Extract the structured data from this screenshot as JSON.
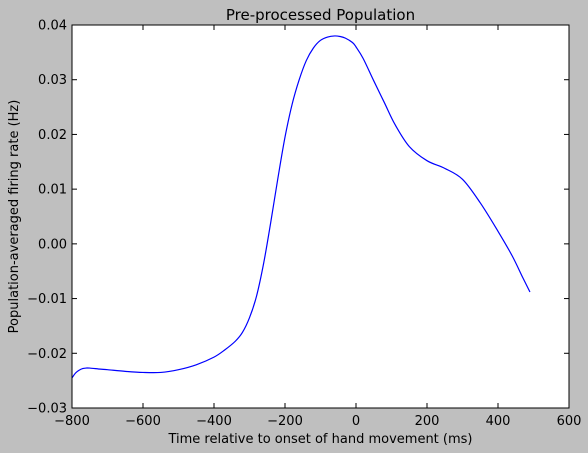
{
  "chart_data": {
    "type": "line",
    "title": "Pre-processed Population",
    "xlabel": "Time relative to onset of hand movement (ms)",
    "ylabel": "Population-averaged firing rate (Hz)",
    "xlim": [
      -800,
      600
    ],
    "ylim": [
      -0.03,
      0.04
    ],
    "xticks": [
      -800,
      -600,
      -400,
      -200,
      0,
      200,
      400,
      600
    ],
    "xtick_labels": [
      "−800",
      "−600",
      "−400",
      "−200",
      "0",
      "200",
      "400",
      "600"
    ],
    "yticks": [
      -0.03,
      -0.02,
      -0.01,
      0.0,
      0.01,
      0.02,
      0.03,
      0.04
    ],
    "ytick_labels": [
      "−0.03",
      "−0.02",
      "−0.01",
      "0.00",
      "0.01",
      "0.02",
      "0.03",
      "0.04"
    ],
    "grid": false,
    "legend": "none",
    "colors": {
      "line": "#0000ff",
      "axes_background": "#ffffff",
      "figure_background": "#bfbfbf"
    },
    "series": [
      {
        "x": [
          -800,
          -790,
          -780,
          -770,
          -760,
          -750,
          -720,
          -700,
          -650,
          -600,
          -550,
          -500,
          -450,
          -400,
          -370,
          -340,
          -320,
          -300,
          -280,
          -260,
          -240,
          -220,
          -200,
          -180,
          -160,
          -140,
          -120,
          -100,
          -80,
          -60,
          -45,
          -30,
          -10,
          0,
          20,
          50,
          80,
          110,
          150,
          200,
          250,
          300,
          350,
          400,
          440,
          470,
          490
        ],
        "y": [
          -0.0245,
          -0.0236,
          -0.0231,
          -0.0228,
          -0.0227,
          -0.0227,
          -0.0229,
          -0.023,
          -0.0233,
          -0.0235,
          -0.0235,
          -0.023,
          -0.0221,
          -0.0207,
          -0.0194,
          -0.0178,
          -0.0162,
          -0.0135,
          -0.0095,
          -0.0035,
          0.004,
          0.012,
          0.0195,
          0.0255,
          0.03,
          0.0335,
          0.0358,
          0.0372,
          0.0378,
          0.038,
          0.0379,
          0.0376,
          0.0368,
          0.036,
          0.0339,
          0.0298,
          0.0258,
          0.0218,
          0.0178,
          0.0152,
          0.0138,
          0.0118,
          0.0075,
          0.0023,
          -0.0022,
          -0.0062,
          -0.0088
        ]
      }
    ]
  }
}
